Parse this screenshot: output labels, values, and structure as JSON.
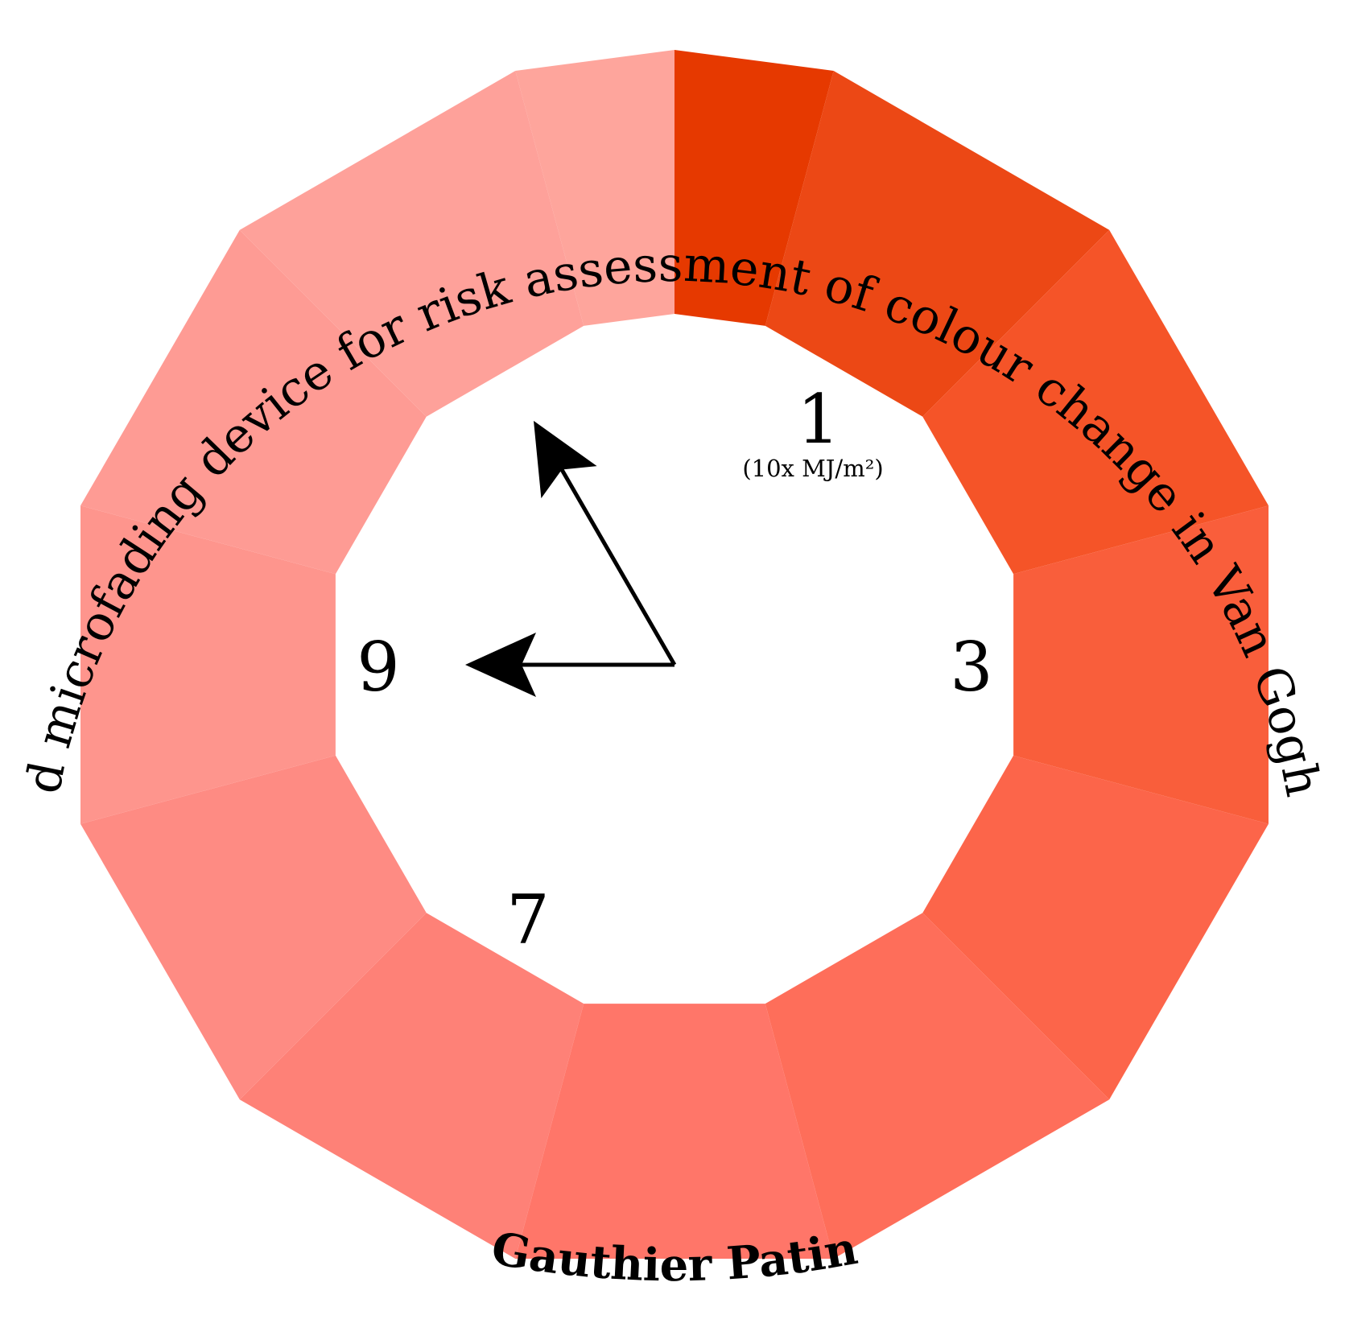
{
  "title": "Improved microfading device for risk assessment of colour change in Van Gogh's works",
  "author": "Gauthier Patin",
  "numbers": {
    "one": "1",
    "three": "3",
    "seven": "7",
    "nine": "9"
  },
  "unit_label": "(10x MJ/m²)",
  "segments": [
    {
      "position": 12,
      "colors": [
        "#fea59c",
        "#e63900"
      ]
    },
    {
      "position": 1,
      "color": "#ec4815"
    },
    {
      "position": 2,
      "color": "#f55428"
    },
    {
      "position": 3,
      "color": "#f95e3b"
    },
    {
      "position": 4,
      "color": "#fc654a"
    },
    {
      "position": 5,
      "color": "#fe6e5a"
    },
    {
      "position": 6,
      "color": "#ff7669"
    },
    {
      "position": 7,
      "color": "#fe8177"
    },
    {
      "position": 8,
      "color": "#fe8b83"
    },
    {
      "position": 9,
      "color": "#fe958d"
    },
    {
      "position": 10,
      "color": "#fe9b94"
    },
    {
      "position": 11,
      "color": "#fea19a"
    }
  ],
  "hands": {
    "hour_points_to": 9,
    "minute_points_to": 55,
    "color": "#000000"
  }
}
